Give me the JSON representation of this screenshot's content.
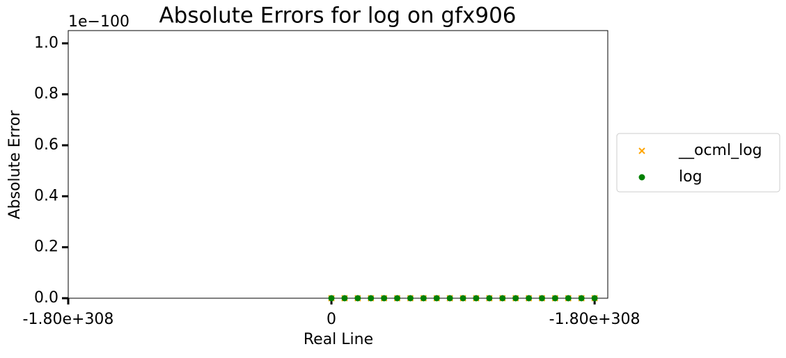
{
  "chart_data": {
    "type": "scatter",
    "title": "Absolute Errors for log on gfx906",
    "x_label": "Real Line",
    "y_label": "Absolute Error",
    "y_offset_label": "1e−100",
    "x": [
      0,
      0.05,
      0.1,
      0.15,
      0.2,
      0.25,
      0.3,
      0.35,
      0.4,
      0.45,
      0.5,
      0.55,
      0.6,
      0.65,
      0.7,
      0.75,
      0.8,
      0.85,
      0.9,
      0.95,
      1
    ],
    "series": [
      {
        "name": "__ocml_log",
        "color": "#ffa500",
        "marker": "x",
        "values": [
          0,
          0,
          0,
          0,
          0,
          0,
          0,
          0,
          0,
          0,
          0,
          0,
          0,
          0,
          0,
          0,
          0,
          0,
          0,
          0,
          0
        ]
      },
      {
        "name": "log",
        "color": "#008000",
        "marker": "o",
        "values": [
          0,
          0,
          0,
          0,
          0,
          0,
          0,
          0,
          0,
          0,
          0,
          0,
          0,
          0,
          0,
          0,
          0,
          0,
          0,
          0,
          0
        ]
      }
    ],
    "xlim": [
      -1,
      1.05
    ],
    "xticks": [
      {
        "value": -1,
        "label": "-1.80e+308"
      },
      {
        "value": 0,
        "label": "0"
      },
      {
        "value": 1,
        "label": "-1.80e+308"
      }
    ],
    "ylim": [
      0,
      1.05
    ],
    "yticks": [
      {
        "value": 0,
        "label": "0.0"
      },
      {
        "value": 0.2,
        "label": "0.2"
      },
      {
        "value": 0.4,
        "label": "0.4"
      },
      {
        "value": 0.6,
        "label": "0.6"
      },
      {
        "value": 0.8,
        "label": "0.8"
      },
      {
        "value": 1,
        "label": "1.0"
      }
    ],
    "legend": "outside-right"
  }
}
